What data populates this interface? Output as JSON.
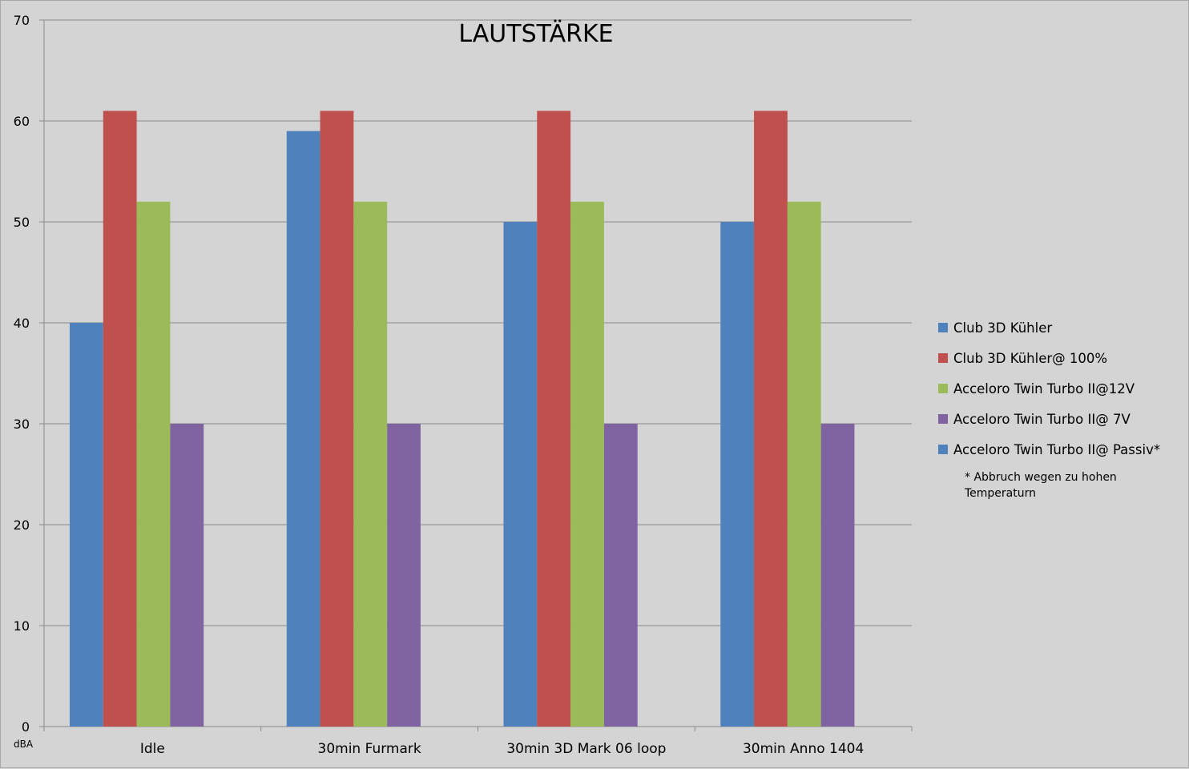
{
  "chart_data": {
    "type": "bar",
    "title": "LAUTSTÄRKE",
    "xlabel": "",
    "ylabel": "dBA",
    "ylim": [
      0,
      70
    ],
    "yticks": [
      0,
      10,
      20,
      30,
      40,
      50,
      60,
      70
    ],
    "grid": true,
    "legend_position": "right",
    "categories": [
      "Idle",
      "30min Furmark",
      "30min 3D Mark 06 loop",
      "30min Anno 1404"
    ],
    "series": [
      {
        "name": "Club 3D Kühler",
        "color": "#4f81bd",
        "values": [
          40,
          59,
          50,
          50
        ]
      },
      {
        "name": "Club 3D Kühler@ 100%",
        "color": "#c0504d",
        "values": [
          61,
          61,
          61,
          61
        ]
      },
      {
        "name": "Acceloro Twin Turbo II@12V",
        "color": "#9bbb59",
        "values": [
          52,
          52,
          52,
          52
        ]
      },
      {
        "name": "Acceloro Twin Turbo II@ 7V",
        "color": "#8064a2",
        "values": [
          30,
          30,
          30,
          30
        ]
      },
      {
        "name": "Acceloro Twin Turbo II@ Passiv*",
        "color": "#4f81bd",
        "values": [
          null,
          null,
          null,
          null
        ]
      }
    ],
    "footnote": "* Abbruch wegen zu hohen Temperaturn"
  }
}
